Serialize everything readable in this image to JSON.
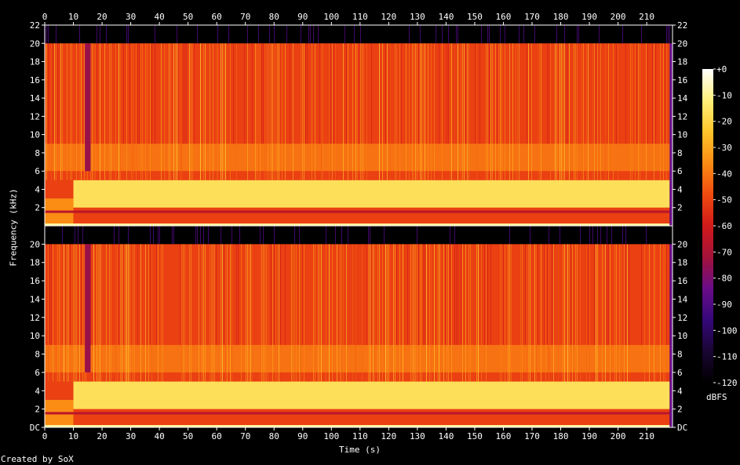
{
  "chart_data": {
    "type": "heatmap",
    "title": "",
    "xlabel": "Time (s)",
    "ylabel": "Frequency (kHz)",
    "xlim": [
      0,
      219
    ],
    "x_ticks": [
      "0",
      "10",
      "20",
      "30",
      "40",
      "50",
      "60",
      "70",
      "80",
      "90",
      "100",
      "110",
      "120",
      "130",
      "140",
      "150",
      "160",
      "170",
      "180",
      "190",
      "200",
      "210"
    ],
    "panels": [
      {
        "name": "",
        "ylim": [
          0,
          22
        ],
        "y_ticks": [
          "2",
          "4",
          "6",
          "8",
          "10",
          "12",
          "14",
          "16",
          "18",
          "20",
          "22"
        ]
      },
      {
        "name": "",
        "ylim": [
          0,
          22
        ],
        "y_ticks": [
          "DC",
          "2",
          "4",
          "6",
          "8",
          "10",
          "12",
          "14",
          "16",
          "18",
          "20"
        ]
      }
    ],
    "colorbar": {
      "label": "dBFS",
      "range": [
        -120,
        0
      ],
      "ticks": [
        "+0",
        "-10",
        "-20",
        "-30",
        "-40",
        "-50",
        "-60",
        "-70",
        "-80",
        "-90",
        "-100",
        "-110",
        "-120"
      ],
      "colors": [
        "#000000",
        "#1a0533",
        "#35087a",
        "#6a0c8a",
        "#a3123a",
        "#d11a1a",
        "#f04a10",
        "#fb8c14",
        "#fdc52a",
        "#fff07a",
        "#ffffff"
      ]
    },
    "spectral_features": {
      "upper_cutoff_khz": 20,
      "bright_band_khz": [
        2,
        5
      ],
      "dark_notch_khz": 1.5,
      "band_onset_s": 10,
      "gap_s": [
        14,
        16
      ],
      "end_s": 218
    }
  },
  "footer": {
    "credit": "Created by SoX"
  }
}
